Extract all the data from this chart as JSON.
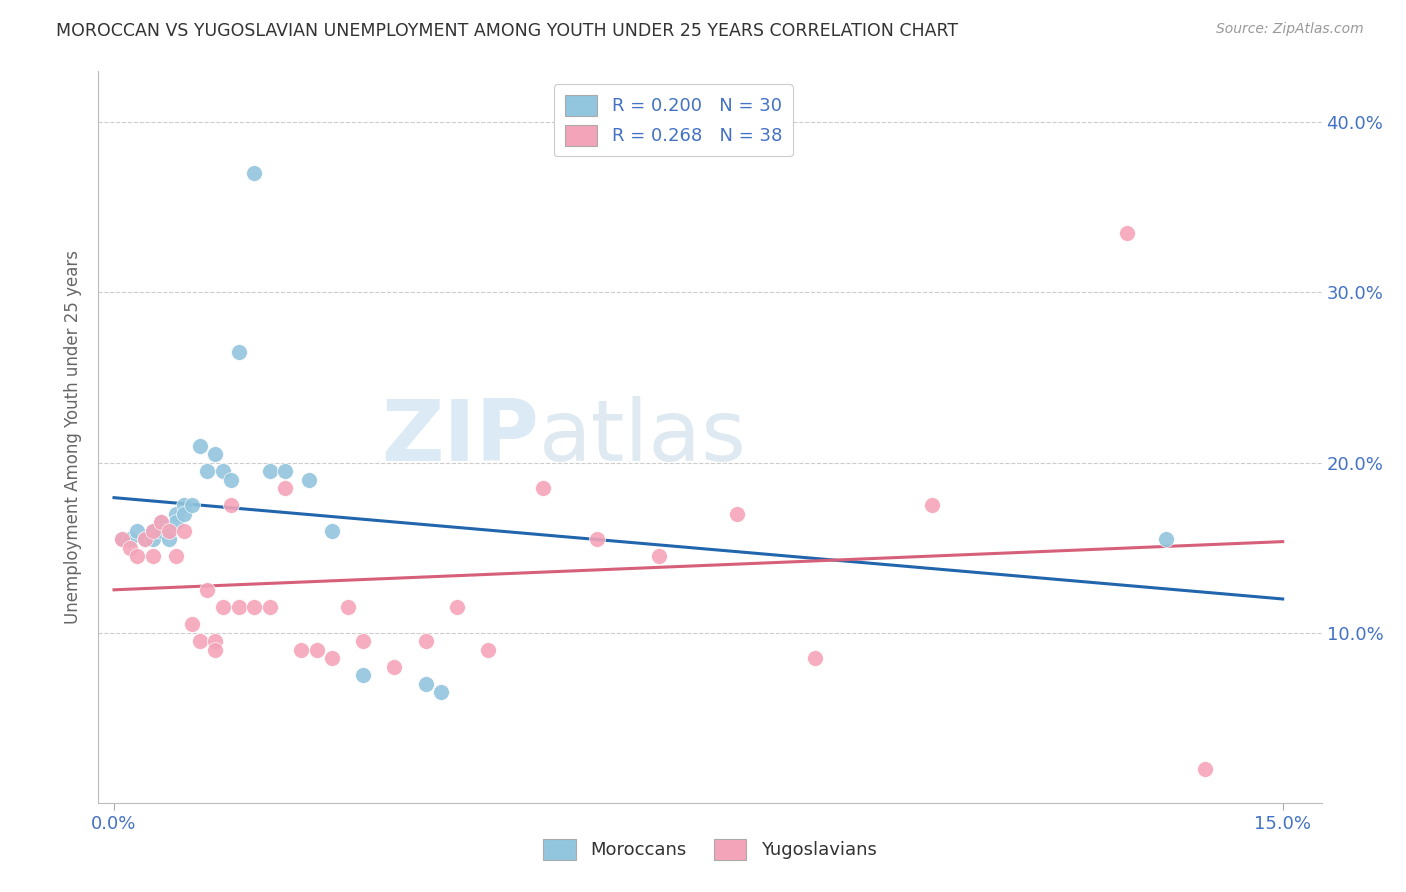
{
  "title": "MOROCCAN VS YUGOSLAVIAN UNEMPLOYMENT AMONG YOUTH UNDER 25 YEARS CORRELATION CHART",
  "source": "Source: ZipAtlas.com",
  "ylabel": "Unemployment Among Youth under 25 years",
  "xlim": [
    -0.002,
    0.155
  ],
  "ylim": [
    0.0,
    0.43
  ],
  "xtick_positions": [
    0.0,
    0.15
  ],
  "yticks": [
    0.1,
    0.2,
    0.3,
    0.4
  ],
  "moroccan_color": "#92c5de",
  "yugoslavian_color": "#f4a4b8",
  "line_moroccan_color": "#2166ac",
  "line_yugoslavian_color": "#d6607a",
  "moroccan_scatter_x": [
    0.001,
    0.002,
    0.003,
    0.004,
    0.005,
    0.005,
    0.006,
    0.006,
    0.007,
    0.007,
    0.008,
    0.008,
    0.009,
    0.009,
    0.01,
    0.011,
    0.012,
    0.013,
    0.014,
    0.015,
    0.016,
    0.018,
    0.02,
    0.022,
    0.025,
    0.028,
    0.032,
    0.04,
    0.042,
    0.135
  ],
  "moroccan_scatter_y": [
    0.155,
    0.155,
    0.16,
    0.155,
    0.16,
    0.155,
    0.165,
    0.16,
    0.16,
    0.155,
    0.17,
    0.165,
    0.175,
    0.17,
    0.175,
    0.21,
    0.195,
    0.205,
    0.195,
    0.19,
    0.265,
    0.37,
    0.195,
    0.195,
    0.19,
    0.16,
    0.075,
    0.07,
    0.065,
    0.155
  ],
  "yugoslavian_scatter_x": [
    0.001,
    0.002,
    0.003,
    0.004,
    0.005,
    0.005,
    0.006,
    0.007,
    0.008,
    0.009,
    0.01,
    0.011,
    0.012,
    0.013,
    0.013,
    0.014,
    0.015,
    0.016,
    0.018,
    0.02,
    0.022,
    0.024,
    0.026,
    0.028,
    0.03,
    0.032,
    0.036,
    0.04,
    0.044,
    0.048,
    0.055,
    0.062,
    0.07,
    0.08,
    0.09,
    0.105,
    0.13,
    0.14
  ],
  "yugoslavian_scatter_y": [
    0.155,
    0.15,
    0.145,
    0.155,
    0.145,
    0.16,
    0.165,
    0.16,
    0.145,
    0.16,
    0.105,
    0.095,
    0.125,
    0.095,
    0.09,
    0.115,
    0.175,
    0.115,
    0.115,
    0.115,
    0.185,
    0.09,
    0.09,
    0.085,
    0.115,
    0.095,
    0.08,
    0.095,
    0.115,
    0.09,
    0.185,
    0.155,
    0.145,
    0.17,
    0.085,
    0.175,
    0.335,
    0.02
  ],
  "watermark_zip": "ZIP",
  "watermark_atlas": "atlas",
  "background_color": "#ffffff",
  "grid_color": "#cccccc"
}
